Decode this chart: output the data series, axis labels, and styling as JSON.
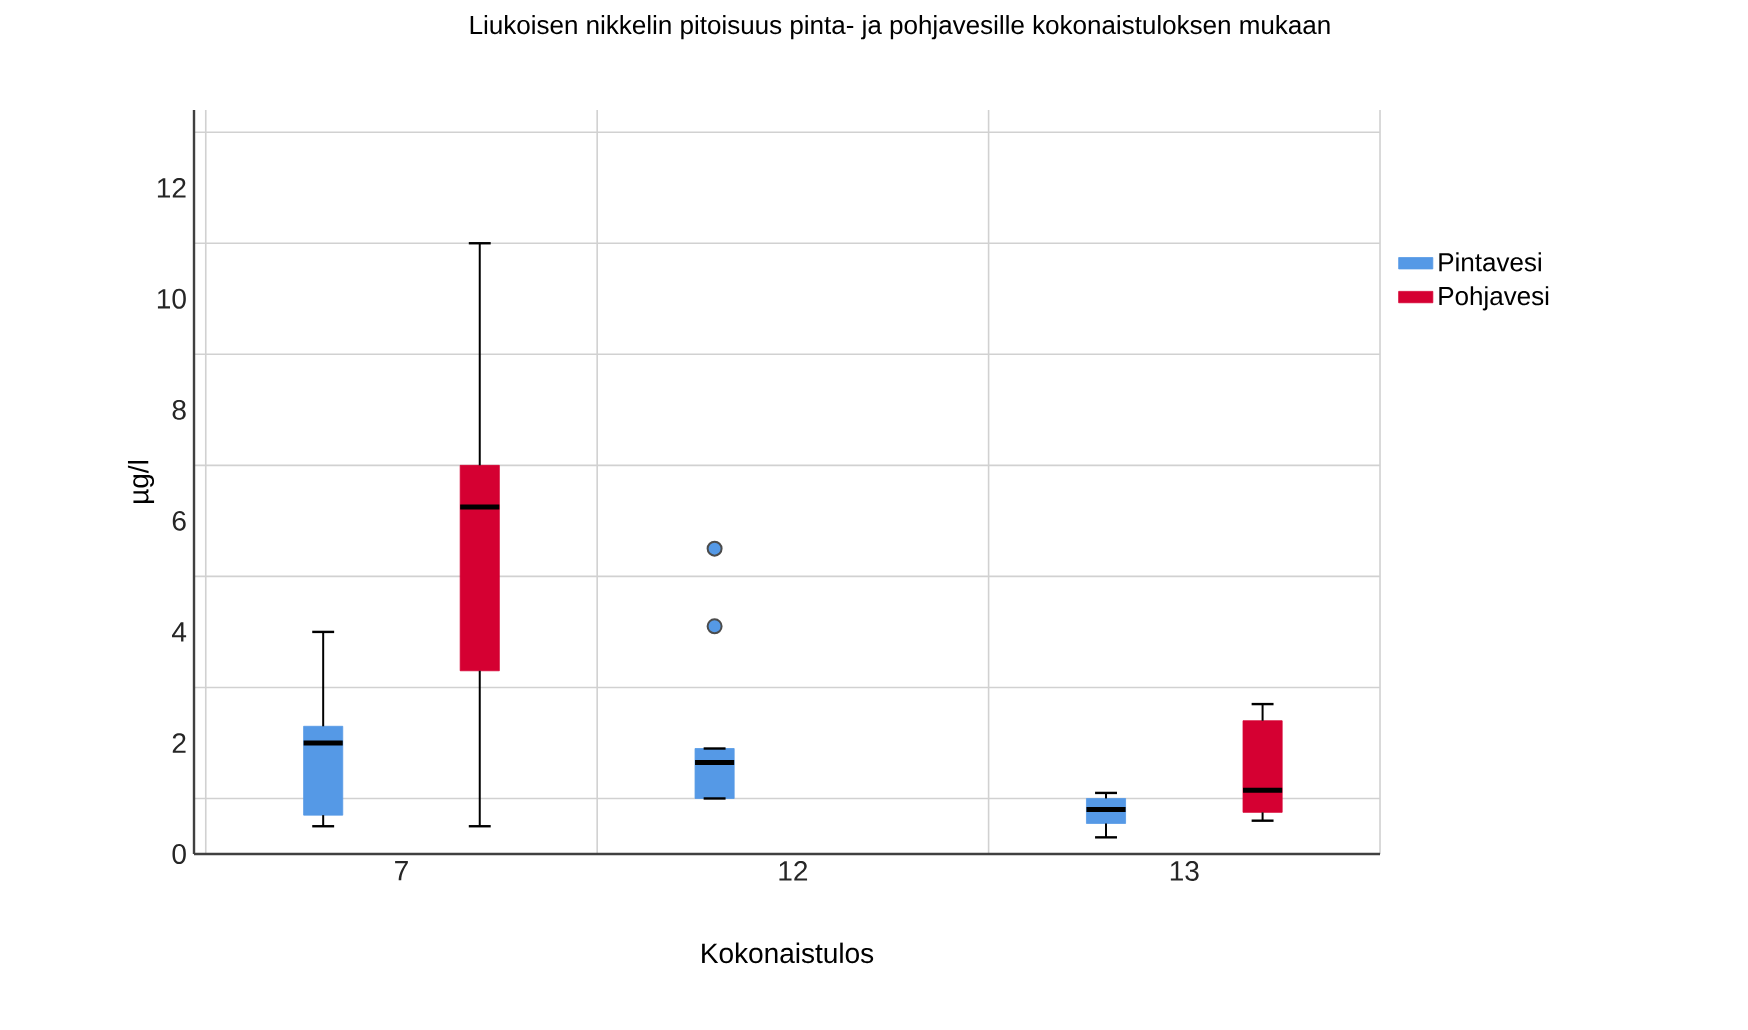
{
  "chart_data": {
    "type": "box",
    "title": "Liukoisen nikkelin pitoisuus pinta- ja pohjavesille kokonaistuloksen mukaan",
    "xlabel": "Kokonaistulos",
    "ylabel": "µg/l",
    "categories": [
      "7",
      "12",
      "13"
    ],
    "ylim": [
      0,
      13.4
    ],
    "yticks": [
      0,
      2,
      4,
      6,
      8,
      10,
      12
    ],
    "grid": true,
    "legend": "right",
    "series": [
      {
        "name": "Pintavesi",
        "color": "#5599e6",
        "boxes": [
          {
            "low": 0.5,
            "q1": 0.7,
            "median": 2.0,
            "q3": 2.3,
            "high": 4.0
          },
          {
            "low": 1.0,
            "q1": 1.0,
            "median": 1.65,
            "q3": 1.9,
            "high": 1.9,
            "outliers": [
              4.1,
              5.5
            ]
          },
          {
            "low": 0.3,
            "q1": 0.55,
            "median": 0.8,
            "q3": 1.0,
            "high": 1.1
          }
        ]
      },
      {
        "name": "Pohjavesi",
        "color": "#d50032",
        "boxes": [
          {
            "low": 0.5,
            "q1": 3.3,
            "median": 6.25,
            "q3": 7.0,
            "high": 11.0
          },
          null,
          {
            "low": 0.6,
            "q1": 0.75,
            "median": 1.15,
            "q3": 2.4,
            "high": 2.7
          }
        ]
      }
    ]
  }
}
